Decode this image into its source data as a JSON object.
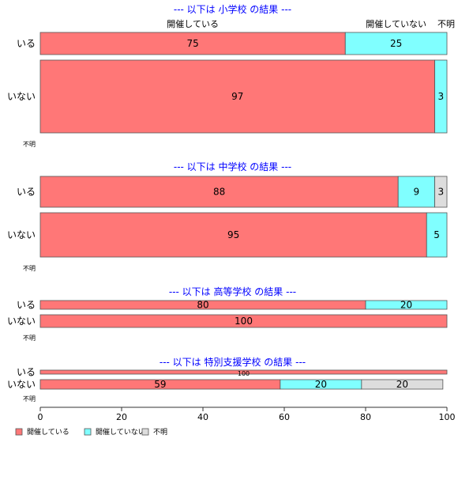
{
  "chart_data": {
    "type": "bar",
    "orientation": "horizontal",
    "stacked": true,
    "categories_top_labels": [
      "開催している",
      "開催していない",
      "不明"
    ],
    "xlim": [
      0,
      100
    ],
    "x_ticks": [
      "0",
      "20",
      "40",
      "60",
      "80",
      "100"
    ],
    "colors": {
      "開催している": "#ff7777",
      "開催していない": "#80ffff",
      "不明": "#dddddd"
    },
    "legend": {
      "position": "bottom-left",
      "items": [
        "開催している",
        "開催していない",
        "不明"
      ]
    },
    "panels": [
      {
        "title": "--- 以下は 小学校 の結果 ---",
        "rows": [
          {
            "label": "いる",
            "values": [
              75,
              25,
              0
            ],
            "labels": [
              "75",
              "25",
              ""
            ]
          },
          {
            "label": "いない",
            "values": [
              97,
              3,
              0
            ],
            "labels": [
              "97",
              "3",
              ""
            ]
          }
        ],
        "na_label": "不明"
      },
      {
        "title": "--- 以下は 中学校 の結果 ---",
        "rows": [
          {
            "label": "いる",
            "values": [
              88,
              9,
              3
            ],
            "labels": [
              "88",
              "9",
              "3"
            ]
          },
          {
            "label": "いない",
            "values": [
              95,
              5,
              0
            ],
            "labels": [
              "95",
              "5",
              ""
            ]
          }
        ],
        "na_label": "不明"
      },
      {
        "title": "--- 以下は 高等学校 の結果 ---",
        "rows": [
          {
            "label": "いる",
            "values": [
              80,
              20,
              0
            ],
            "labels": [
              "80",
              "20",
              ""
            ]
          },
          {
            "label": "いない",
            "values": [
              100,
              0,
              0
            ],
            "labels": [
              "100",
              "",
              ""
            ]
          }
        ],
        "na_label": "不明"
      },
      {
        "title": "--- 以下は 特別支援学校 の結果 ---",
        "rows": [
          {
            "label": "いる",
            "values": [
              100,
              0,
              0
            ],
            "labels": [
              "100",
              "",
              ""
            ]
          },
          {
            "label": "いない",
            "values": [
              59,
              20,
              20
            ],
            "labels": [
              "59",
              "20",
              "20"
            ]
          }
        ],
        "na_label": "不明"
      }
    ]
  }
}
